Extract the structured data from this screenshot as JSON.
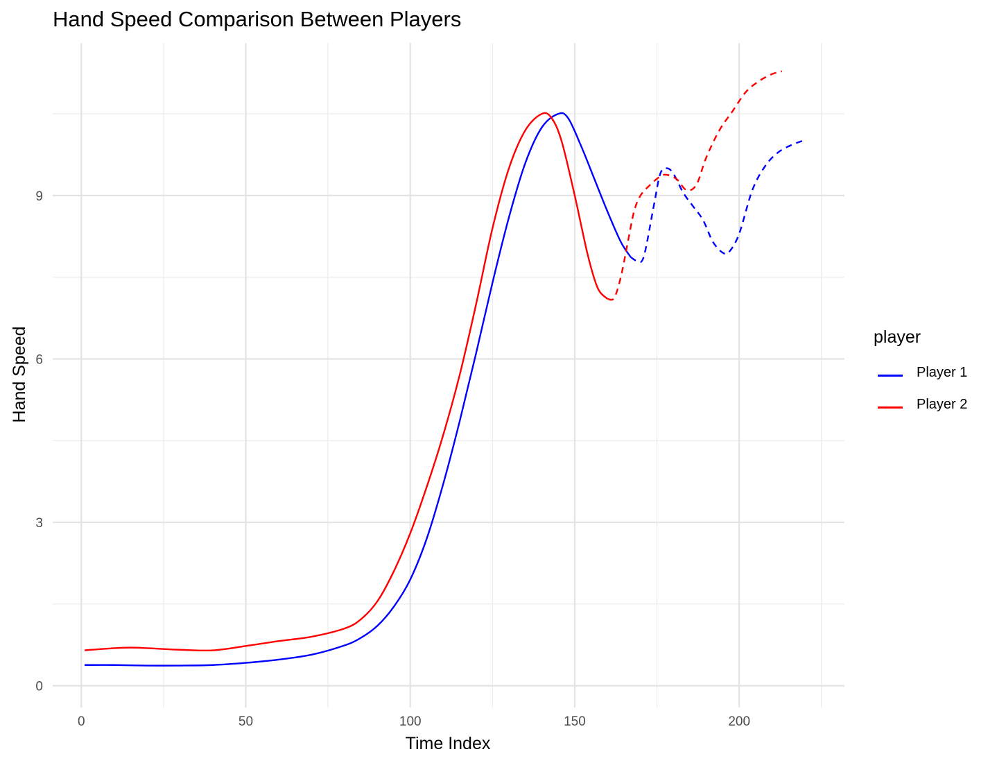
{
  "chart_data": {
    "type": "line",
    "title": "Hand Speed Comparison Between Players",
    "xlabel": "Time Index",
    "ylabel": "Hand Speed",
    "xlim": [
      -8.7,
      232
    ],
    "ylim": [
      -0.4,
      11.8
    ],
    "x_ticks": [
      "0",
      "50",
      "100",
      "150",
      "200"
    ],
    "y_ticks": [
      "0",
      "3",
      "6",
      "9"
    ],
    "grid": true,
    "legend_title": "player",
    "legend_position": "right",
    "series": [
      {
        "name": "Player 1",
        "color": "#0000ff",
        "solid": [
          [
            1,
            0.38
          ],
          [
            10,
            0.38
          ],
          [
            20,
            0.37
          ],
          [
            30,
            0.37
          ],
          [
            40,
            0.38
          ],
          [
            50,
            0.42
          ],
          [
            60,
            0.48
          ],
          [
            70,
            0.57
          ],
          [
            80,
            0.74
          ],
          [
            85,
            0.88
          ],
          [
            90,
            1.1
          ],
          [
            95,
            1.45
          ],
          [
            100,
            1.95
          ],
          [
            105,
            2.7
          ],
          [
            110,
            3.7
          ],
          [
            115,
            4.85
          ],
          [
            120,
            6.1
          ],
          [
            125,
            7.4
          ],
          [
            130,
            8.6
          ],
          [
            135,
            9.6
          ],
          [
            140,
            10.25
          ],
          [
            145,
            10.5
          ],
          [
            148,
            10.42
          ],
          [
            152,
            9.9
          ],
          [
            156,
            9.3
          ],
          [
            160,
            8.7
          ],
          [
            164,
            8.15
          ],
          [
            167,
            7.87
          ]
        ],
        "dashed": [
          [
            167,
            7.87
          ],
          [
            169,
            7.8
          ],
          [
            171,
            7.88
          ],
          [
            174,
            8.8
          ],
          [
            176,
            9.4
          ],
          [
            178,
            9.5
          ],
          [
            180,
            9.4
          ],
          [
            183,
            9.05
          ],
          [
            186,
            8.8
          ],
          [
            189,
            8.55
          ],
          [
            192,
            8.15
          ],
          [
            195,
            7.95
          ],
          [
            197,
            7.97
          ],
          [
            200,
            8.3
          ],
          [
            204,
            9.1
          ],
          [
            208,
            9.55
          ],
          [
            212,
            9.8
          ],
          [
            216,
            9.93
          ],
          [
            220,
            10.02
          ]
        ]
      },
      {
        "name": "Player 2",
        "color": "#ff0000",
        "solid": [
          [
            1,
            0.65
          ],
          [
            10,
            0.69
          ],
          [
            15,
            0.7
          ],
          [
            20,
            0.69
          ],
          [
            30,
            0.66
          ],
          [
            40,
            0.65
          ],
          [
            50,
            0.73
          ],
          [
            60,
            0.82
          ],
          [
            70,
            0.9
          ],
          [
            80,
            1.05
          ],
          [
            85,
            1.22
          ],
          [
            90,
            1.55
          ],
          [
            95,
            2.1
          ],
          [
            100,
            2.8
          ],
          [
            105,
            3.65
          ],
          [
            110,
            4.6
          ],
          [
            115,
            5.7
          ],
          [
            120,
            7.0
          ],
          [
            125,
            8.4
          ],
          [
            130,
            9.5
          ],
          [
            135,
            10.2
          ],
          [
            140,
            10.5
          ],
          [
            143,
            10.42
          ],
          [
            146,
            10.0
          ],
          [
            150,
            9.0
          ],
          [
            154,
            7.9
          ],
          [
            157,
            7.3
          ],
          [
            160,
            7.1
          ]
        ],
        "dashed": [
          [
            160,
            7.1
          ],
          [
            162,
            7.12
          ],
          [
            164,
            7.5
          ],
          [
            166,
            8.1
          ],
          [
            168,
            8.7
          ],
          [
            170,
            9.0
          ],
          [
            173,
            9.2
          ],
          [
            176,
            9.35
          ],
          [
            178,
            9.38
          ],
          [
            181,
            9.3
          ],
          [
            184,
            9.1
          ],
          [
            187,
            9.2
          ],
          [
            190,
            9.7
          ],
          [
            194,
            10.2
          ],
          [
            198,
            10.55
          ],
          [
            202,
            10.9
          ],
          [
            206,
            11.1
          ],
          [
            210,
            11.23
          ],
          [
            213,
            11.28
          ]
        ]
      }
    ]
  }
}
